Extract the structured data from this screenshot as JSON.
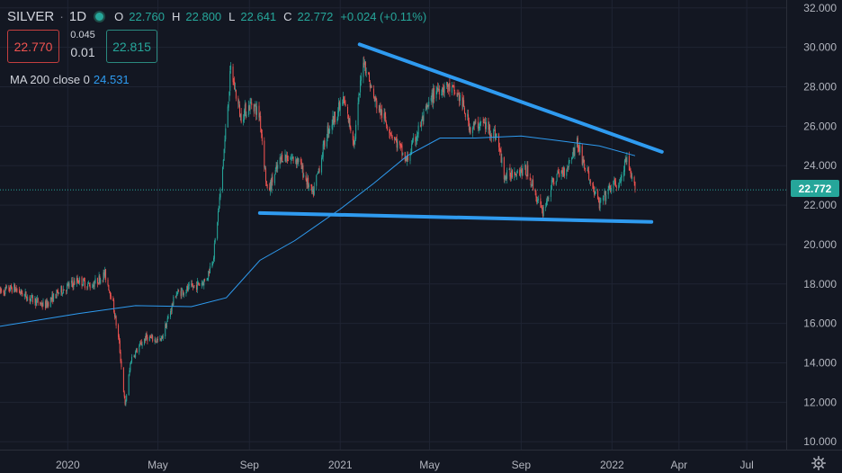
{
  "header": {
    "symbol": "SILVER",
    "separator": "·",
    "interval": "1D",
    "open_label": "O",
    "open": "22.760",
    "high_label": "H",
    "high": "22.800",
    "low_label": "L",
    "low": "22.641",
    "close_label": "C",
    "close": "22.772",
    "change": "+0.024 (+0.11%)",
    "status_color": "#26a69a"
  },
  "quote": {
    "sell": "22.770",
    "spread_small": "0.045",
    "spread": "0.01",
    "buy": "22.815"
  },
  "indicator": {
    "label": "MA 200 close 0",
    "value": "24.531",
    "color": "#2e9bf0"
  },
  "last_price_tag": "22.772",
  "icons": {
    "settings": "gear-icon"
  },
  "colors": {
    "background": "#131722",
    "up_candle": "#26a69a",
    "down_candle": "#ef5350",
    "trendlines": "#2f9bf0",
    "moving_average": "#2e9bf0"
  },
  "chart_data": {
    "type": "candlestick",
    "title": "",
    "xlabel": "",
    "ylabel": "",
    "y_axis": {
      "position": "right",
      "ticks": [
        "32.000",
        "30.000",
        "28.000",
        "26.000",
        "24.000",
        "22.000",
        "20.000",
        "18.000",
        "16.000",
        "14.000",
        "12.000",
        "10.000"
      ],
      "ylim": [
        9.6,
        32.4
      ]
    },
    "x_axis": {
      "ticks": [
        "2020",
        "May",
        "Sep",
        "2021",
        "May",
        "Sep",
        "2022",
        "Apr",
        "Jul"
      ],
      "xlim": [
        "2019-10-02",
        "2022-08-23"
      ]
    },
    "grid": true,
    "price_path": [
      [
        "2019-10-02",
        17.6
      ],
      [
        "2019-10-20",
        17.8
      ],
      [
        "2019-11-10",
        17.3
      ],
      [
        "2019-12-01",
        16.9
      ],
      [
        "2019-12-20",
        17.6
      ],
      [
        "2020-01-15",
        18.2
      ],
      [
        "2020-02-01",
        17.9
      ],
      [
        "2020-02-20",
        18.5
      ],
      [
        "2020-03-01",
        17.2
      ],
      [
        "2020-03-10",
        15.0
      ],
      [
        "2020-03-18",
        11.8
      ],
      [
        "2020-03-26",
        14.2
      ],
      [
        "2020-04-15",
        15.3
      ],
      [
        "2020-05-05",
        15.1
      ],
      [
        "2020-05-25",
        17.5
      ],
      [
        "2020-06-15",
        17.8
      ],
      [
        "2020-07-05",
        18.2
      ],
      [
        "2020-07-15",
        19.5
      ],
      [
        "2020-07-25",
        23.0
      ],
      [
        "2020-08-07",
        28.9
      ],
      [
        "2020-08-20",
        26.5
      ],
      [
        "2020-09-05",
        27.2
      ],
      [
        "2020-09-15",
        26.5
      ],
      [
        "2020-09-25",
        22.6
      ],
      [
        "2020-10-15",
        24.5
      ],
      [
        "2020-11-05",
        24.3
      ],
      [
        "2020-11-25",
        22.5
      ],
      [
        "2020-12-15",
        25.8
      ],
      [
        "2021-01-05",
        27.3
      ],
      [
        "2021-01-20",
        25.2
      ],
      [
        "2021-02-01",
        29.5
      ],
      [
        "2021-02-15",
        27.4
      ],
      [
        "2021-03-05",
        26.1
      ],
      [
        "2021-03-31",
        24.2
      ],
      [
        "2021-04-20",
        26.2
      ],
      [
        "2021-05-10",
        27.9
      ],
      [
        "2021-05-25",
        28.0
      ],
      [
        "2021-06-10",
        27.5
      ],
      [
        "2021-06-25",
        25.9
      ],
      [
        "2021-07-10",
        26.2
      ],
      [
        "2021-07-30",
        25.5
      ],
      [
        "2021-08-10",
        23.4
      ],
      [
        "2021-08-25",
        23.8
      ],
      [
        "2021-09-10",
        23.7
      ],
      [
        "2021-09-29",
        21.6
      ],
      [
        "2021-10-15",
        23.3
      ],
      [
        "2021-11-01",
        23.9
      ],
      [
        "2021-11-15",
        25.2
      ],
      [
        "2021-11-25",
        24.0
      ],
      [
        "2021-12-15",
        22.0
      ],
      [
        "2022-01-01",
        23.0
      ],
      [
        "2022-01-12",
        23.1
      ],
      [
        "2022-01-20",
        24.3
      ],
      [
        "2022-01-27",
        23.3
      ],
      [
        "2022-02-01",
        22.8
      ]
    ],
    "series": [
      {
        "name": "MA 200 close 0",
        "points": [
          [
            "2019-10-02",
            15.85
          ],
          [
            "2020-01-15",
            16.5
          ],
          [
            "2020-04-01",
            16.9
          ],
          [
            "2020-06-15",
            16.85
          ],
          [
            "2020-08-01",
            17.3
          ],
          [
            "2020-09-15",
            19.2
          ],
          [
            "2020-11-01",
            20.2
          ],
          [
            "2021-01-01",
            21.8
          ],
          [
            "2021-02-15",
            23.1
          ],
          [
            "2021-04-01",
            24.5
          ],
          [
            "2021-05-15",
            25.4
          ],
          [
            "2021-07-01",
            25.4
          ],
          [
            "2021-09-01",
            25.5
          ],
          [
            "2021-10-15",
            25.3
          ],
          [
            "2021-12-15",
            25.0
          ],
          [
            "2022-02-01",
            24.5
          ]
        ]
      }
    ],
    "trendlines": [
      {
        "from": [
          "2021-01-27",
          30.15
        ],
        "to": [
          "2022-03-09",
          24.7
        ]
      },
      {
        "from": [
          "2020-09-15",
          21.6
        ],
        "to": [
          "2022-02-23",
          21.15
        ]
      }
    ],
    "last_price": 22.772
  }
}
